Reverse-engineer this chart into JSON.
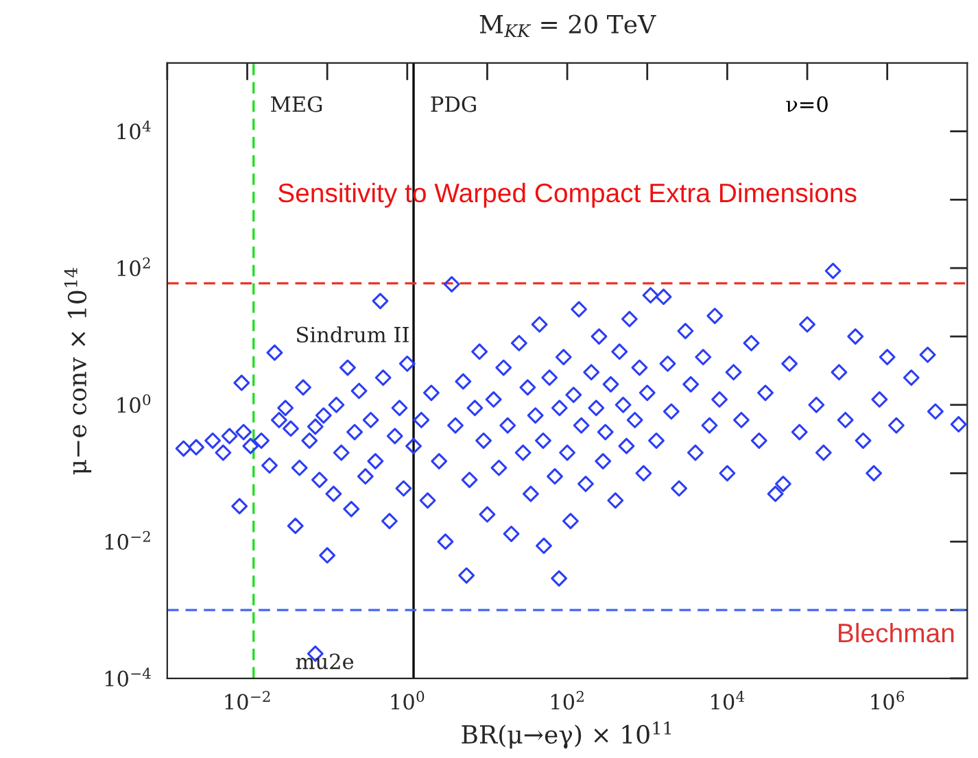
{
  "chart_data": {
    "type": "scatter",
    "title": "M$_{KK}$ = 20 TeV",
    "xlabel": "BR(μ→eγ) × 10$^{11}$",
    "ylabel": "μ−e conv × 10$^{14}$",
    "log": "xy",
    "grid": false,
    "marker": "diamond",
    "xlim": [
      0.001,
      10000000
    ],
    "ylim": [
      0.0001,
      100000
    ],
    "xticks": [
      {
        "value": 0.001,
        "label": null
      },
      {
        "value": 0.01,
        "label": "10$^{−2}$"
      },
      {
        "value": 0.1,
        "label": null
      },
      {
        "value": 1,
        "label": "10$^{0}$"
      },
      {
        "value": 10,
        "label": null
      },
      {
        "value": 100,
        "label": "10$^{2}$"
      },
      {
        "value": 1000,
        "label": null
      },
      {
        "value": 10000,
        "label": "10$^{4}$"
      },
      {
        "value": 100000,
        "label": null
      },
      {
        "value": 1000000,
        "label": "10$^{6}$"
      }
    ],
    "yticks": [
      {
        "value": 0.0001,
        "label": "10$^{−4}$"
      },
      {
        "value": 0.001,
        "label": null
      },
      {
        "value": 0.01,
        "label": "10$^{−2}$"
      },
      {
        "value": 0.1,
        "label": null
      },
      {
        "value": 1,
        "label": "10$^{0}$"
      },
      {
        "value": 10,
        "label": null
      },
      {
        "value": 100,
        "label": "10$^{2}$"
      },
      {
        "value": 1000,
        "label": null
      },
      {
        "value": 10000,
        "label": "10$^{4}$"
      }
    ],
    "ref_lines": [
      {
        "axis": "x",
        "value": 0.012,
        "label": "MEG",
        "color": "#22dd22",
        "line_style": "dashed"
      },
      {
        "axis": "x",
        "value": 1.2,
        "label": "PDG",
        "color": "#000000",
        "line_style": "solid"
      },
      {
        "axis": "y",
        "value": 60,
        "label": "Sindrum II",
        "color": "#ee3322",
        "line_style": "dashed"
      },
      {
        "axis": "y",
        "value": 0.001,
        "label": "mu2e",
        "color": "#4466ee",
        "line_style": "dashed"
      }
    ],
    "annotations": [
      "ν=0",
      "Sensitivity to Warped Compact Extra Dimensions",
      "Blechman"
    ],
    "series": [
      {
        "color": "#2b3df5",
        "x": [
          0.0016,
          0.0023,
          0.0037,
          0.005,
          0.006,
          0.0085,
          0.008,
          0.009,
          0.011,
          0.015,
          0.019,
          0.022,
          0.025,
          0.03,
          0.035,
          0.04,
          0.045,
          0.05,
          0.06,
          0.071,
          0.08,
          0.1,
          0.071,
          0.09,
          0.12,
          0.13,
          0.15,
          0.18,
          0.2,
          0.22,
          0.25,
          0.3,
          0.35,
          0.4,
          0.46,
          0.5,
          0.6,
          0.7,
          0.8,
          0.9,
          1.0,
          1.2,
          1.5,
          1.8,
          2,
          2.5,
          3.0,
          3.6,
          4,
          5,
          5.5,
          6,
          7,
          8,
          9,
          10,
          12,
          14,
          16,
          18,
          20,
          25,
          28,
          32,
          35,
          40,
          45,
          50,
          51,
          60,
          70,
          79,
          80,
          90,
          100,
          110,
          120,
          140,
          150,
          170,
          200,
          230,
          250,
          280,
          300,
          350,
          400,
          450,
          500,
          550,
          600,
          700,
          800,
          900,
          1000,
          1100,
          1300,
          1600,
          1800,
          2000,
          2500,
          3000,
          3500,
          4000,
          5000,
          6000,
          7000,
          8000,
          10000.0,
          12000.0,
          15000.0,
          20000.0,
          25000.0,
          30000.0,
          40000.0,
          50000.0,
          60000.0,
          80000.0,
          100000.0,
          130000.0,
          160000.0,
          210000.0,
          250000.0,
          300000.0,
          400000.0,
          500000.0,
          680000.0,
          800000.0,
          1000000.0,
          1300000.0,
          2000000.0,
          3200000.0,
          4000000.0,
          7800000.0
        ],
        "values": [
          0.23,
          0.24,
          0.3,
          0.2,
          0.35,
          2.1,
          0.033,
          0.4,
          0.25,
          0.3,
          0.13,
          5.8,
          0.6,
          0.9,
          0.45,
          0.017,
          0.12,
          1.8,
          0.3,
          0.48,
          0.08,
          0.0063,
          0.00023,
          0.7,
          0.05,
          1.0,
          0.2,
          3.5,
          0.03,
          0.4,
          1.6,
          0.09,
          0.6,
          0.15,
          33,
          2.5,
          0.02,
          0.35,
          0.9,
          0.06,
          4.0,
          0.25,
          0.6,
          0.04,
          1.5,
          0.15,
          0.01,
          58,
          0.5,
          2.2,
          0.0032,
          0.08,
          0.9,
          6,
          0.3,
          0.025,
          1.2,
          0.12,
          3.5,
          0.5,
          0.013,
          8,
          0.2,
          1.8,
          0.05,
          0.7,
          15,
          0.3,
          0.0087,
          2.5,
          0.09,
          0.0029,
          0.9,
          5,
          0.2,
          0.02,
          1.4,
          25,
          0.5,
          0.07,
          3,
          0.9,
          10,
          0.15,
          0.4,
          2,
          0.04,
          6,
          1,
          0.25,
          18,
          0.6,
          3.5,
          0.1,
          1.5,
          40,
          0.3,
          38,
          4,
          0.8,
          0.06,
          12,
          2,
          0.2,
          5,
          0.5,
          20,
          1.2,
          0.1,
          3,
          0.6,
          8,
          0.3,
          1.5,
          0.05,
          0.07,
          4,
          0.4,
          15,
          1.0,
          0.2,
          91,
          3,
          0.6,
          10,
          0.3,
          0.1,
          1.2,
          5,
          0.5,
          2.5,
          5.4,
          0.8,
          0.52
        ]
      }
    ]
  }
}
